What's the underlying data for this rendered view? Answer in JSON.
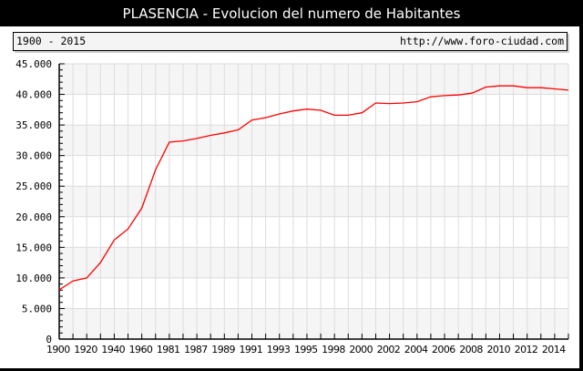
{
  "header": {
    "title": "PLASENCIA - Evolucion del numero de Habitantes"
  },
  "info_bar": {
    "range": "1900 - 2015",
    "url": "http://www.foro-ciudad.com"
  },
  "colors": {
    "line": "#ff0000",
    "stripe": "#f5f5f5",
    "grid": "#dcdcdc",
    "background": "#ffffff"
  },
  "chart_data": {
    "type": "line",
    "title": "PLASENCIA - Evolucion del numero de Habitantes",
    "subtitle": "1900 - 2015",
    "xlabel": "",
    "ylabel": "",
    "ylim": [
      0,
      45000
    ],
    "yticks": [
      0,
      5000,
      10000,
      15000,
      20000,
      25000,
      30000,
      35000,
      40000,
      45000
    ],
    "ytick_labels": [
      "0",
      "5.000",
      "10.000",
      "15.000",
      "20.000",
      "25.000",
      "30.000",
      "35.000",
      "40.000",
      "45.000"
    ],
    "xtick_labels": [
      "1900",
      "1920",
      "1940",
      "1960",
      "1981",
      "1987",
      "1989",
      "1991",
      "1993",
      "1995",
      "1998",
      "2000",
      "2002",
      "2004",
      "2006",
      "2008",
      "2010",
      "2012",
      "2014"
    ],
    "grid": true,
    "legend": "none",
    "x": [
      "1900",
      "1910",
      "1920",
      "1930",
      "1940",
      "1950",
      "1960",
      "1970",
      "1981",
      "1986",
      "1987",
      "1988",
      "1989",
      "1990",
      "1991",
      "1992",
      "1993",
      "1994",
      "1995",
      "1996",
      "1998",
      "1999",
      "2000",
      "2001",
      "2002",
      "2003",
      "2004",
      "2005",
      "2006",
      "2007",
      "2008",
      "2009",
      "2010",
      "2011",
      "2012",
      "2013",
      "2014",
      "2015"
    ],
    "series": [
      {
        "name": "Habitantes",
        "values": [
          8050,
          9500,
          10000,
          12500,
          16200,
          18000,
          21400,
          27700,
          32200,
          32400,
          32800,
          33300,
          33700,
          34200,
          35800,
          36200,
          36800,
          37300,
          37600,
          37400,
          36600,
          36600,
          37000,
          38600,
          38500,
          38600,
          38800,
          39600,
          39800,
          39900,
          40200,
          41200,
          41400,
          41400,
          41100,
          41100,
          40900,
          40700
        ]
      }
    ]
  }
}
